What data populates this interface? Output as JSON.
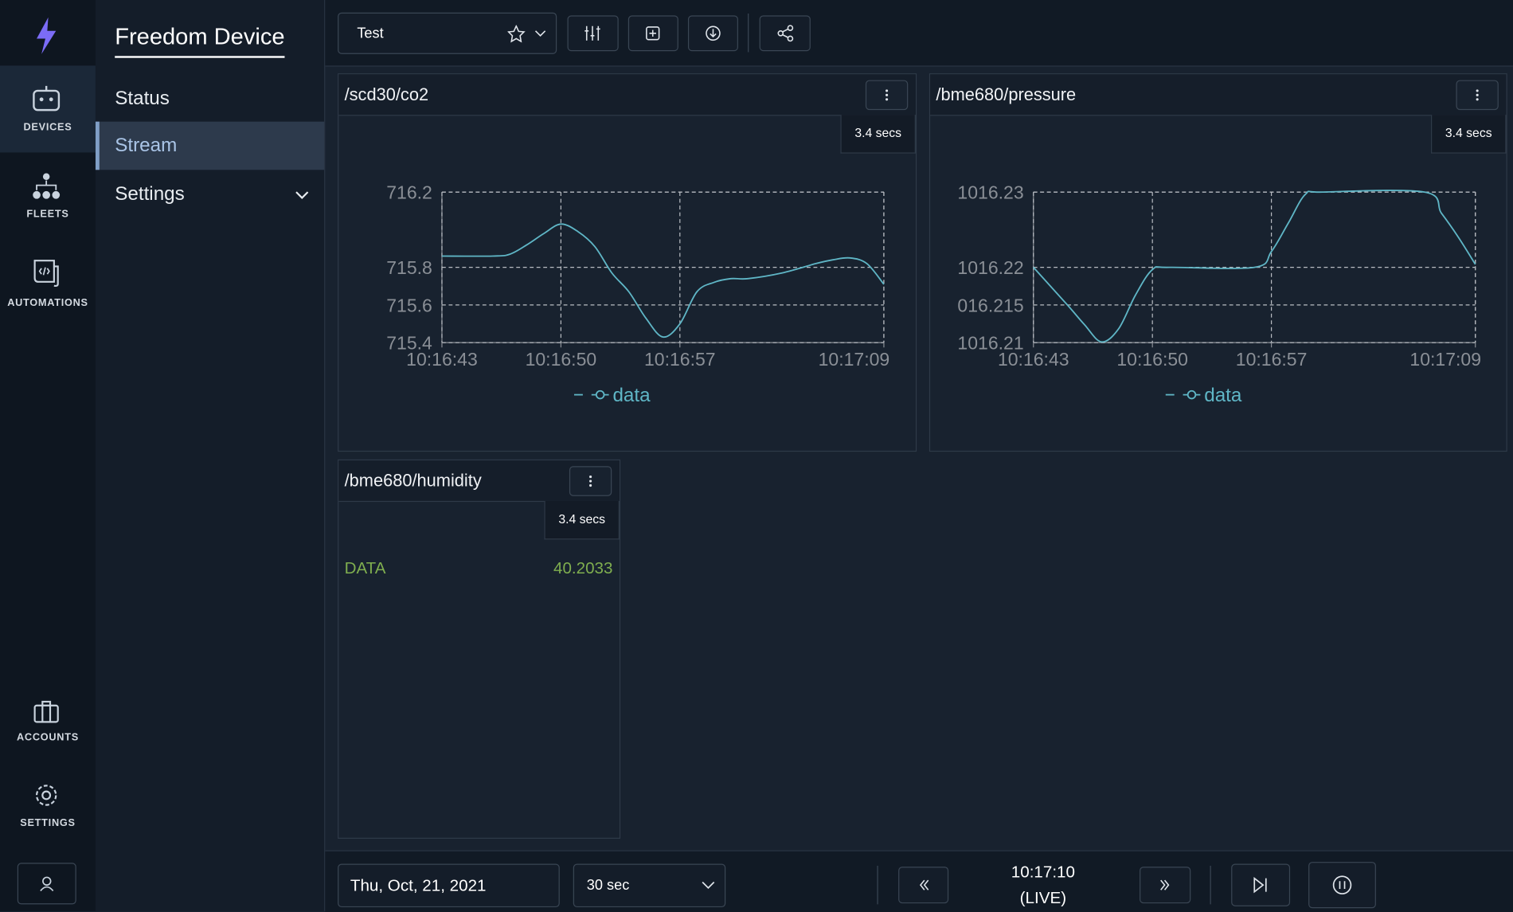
{
  "nav": {
    "items": [
      "DEVICES",
      "FLEETS",
      "AUTOMATIONS"
    ],
    "bottom": [
      "ACCOUNTS",
      "SETTINGS"
    ]
  },
  "sidebar": {
    "title": "Freedom Device",
    "items": [
      "Status",
      "Stream",
      "Settings"
    ]
  },
  "toolbar": {
    "layout": "Test"
  },
  "panels": [
    {
      "title": "/scd30/co2",
      "badge": "3.4 secs",
      "chart_data": {
        "type": "line",
        "grid": true,
        "xlim": [
          "10:16:43",
          "10:17:09"
        ],
        "xticks": [
          "10:16:43",
          "10:16:50",
          "10:16:57",
          "10:17:09"
        ],
        "ylim": [
          715.4,
          716.2
        ],
        "yticks": [
          715.4,
          715.6,
          715.8,
          716.2
        ],
        "x": [
          "10:16:43",
          "10:16:46",
          "10:16:47",
          "10:16:48",
          "10:16:49",
          "10:16:50",
          "10:16:51",
          "10:16:52",
          "10:16:53",
          "10:16:54",
          "10:16:55",
          "10:16:56",
          "10:16:57",
          "10:16:58",
          "10:16:59",
          "10:17:00",
          "10:17:01",
          "10:17:03",
          "10:17:05",
          "10:17:06",
          "10:17:07",
          "10:17:08",
          "10:17:09"
        ],
        "series": [
          {
            "name": "data",
            "color": "#5fb6c6",
            "values": [
              715.86,
              715.86,
              715.87,
              715.92,
              715.98,
              716.03,
              715.99,
              715.91,
              715.77,
              715.67,
              715.53,
              715.43,
              715.5,
              715.67,
              715.72,
              715.74,
              715.74,
              715.77,
              715.82,
              715.84,
              715.85,
              715.82,
              715.71
            ]
          }
        ]
      }
    },
    {
      "title": "/bme680/pressure",
      "badge": "3.4 secs",
      "chart_data": {
        "type": "line",
        "grid": true,
        "xlim": [
          "10:16:43",
          "10:17:09"
        ],
        "xticks": [
          "10:16:43",
          "10:16:50",
          "10:16:57",
          "10:17:09"
        ],
        "ylim": [
          1016.21,
          1016.23
        ],
        "yticks": [
          1016.21,
          {
            "value": 1016.215,
            "label": "016.215"
          },
          1016.22,
          1016.23
        ],
        "x": [
          "10:16:43",
          "10:16:45",
          "10:16:46",
          "10:16:47",
          "10:16:48",
          "10:16:49",
          "10:16:50",
          "10:16:51",
          "10:16:56",
          "10:16:57",
          "10:16:58",
          "10:16:59",
          "10:17:00",
          "10:17:06",
          "10:17:07",
          "10:17:08",
          "10:17:09"
        ],
        "series": [
          {
            "name": "data",
            "color": "#5fb6c6",
            "values": [
              1016.22,
              1016.215,
              1016.2124,
              1016.2101,
              1016.2118,
              1016.2163,
              1016.2197,
              1016.22,
              1016.22,
              1016.2221,
              1016.2259,
              1016.2297,
              1016.23,
              1016.23,
              1016.2272,
              1016.224,
              1016.2204
            ]
          }
        ]
      }
    },
    {
      "title": "/bme680/humidity",
      "badge": "3.4 secs",
      "label": "DATA",
      "value": 40.2033
    }
  ],
  "footer": {
    "date": "Thu, Oct, 21, 2021",
    "window": "30 sec",
    "time": "10:17:10",
    "status": "(LIVE)"
  }
}
